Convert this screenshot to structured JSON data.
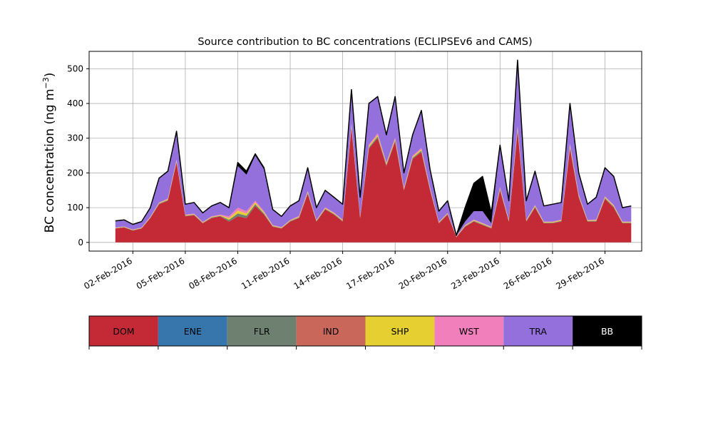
{
  "chart_data": {
    "type": "area",
    "stacked": true,
    "title": "Source contribution to BC concentrations (ECLIPSEv6 and CAMS)",
    "ylabel_main": "BC concentration (ng m",
    "ylabel_sup": "−3",
    "ylabel_close": ")",
    "xlabel": "",
    "ylim": [
      -25,
      550
    ],
    "y_ticks": [
      0,
      100,
      200,
      300,
      400,
      500
    ],
    "y_tick_labels": [
      "0",
      "100",
      "200",
      "300",
      "400",
      "500"
    ],
    "x_range_days": [
      -1.5,
      30.1
    ],
    "x_ticks_day": [
      1,
      4,
      7,
      10,
      13,
      16,
      19,
      22,
      25,
      28
    ],
    "x_tick_labels": [
      "02-Feb-2016",
      "05-Feb-2016",
      "08-Feb-2016",
      "11-Feb-2016",
      "14-Feb-2016",
      "17-Feb-2016",
      "20-Feb-2016",
      "23-Feb-2016",
      "26-Feb-2016",
      "29-Feb-2016"
    ],
    "grid": true,
    "series_colors": {
      "DOM": "#c32a36",
      "ENE": "#3776ad",
      "FLR": "#6e8070",
      "IND": "#c9675a",
      "SHP": "#e6cf30",
      "WST": "#f07fbc",
      "TRA": "#9370db",
      "BB": "#000000"
    },
    "time_days": [
      0,
      0.5,
      1,
      1.5,
      2,
      2.5,
      3,
      3.5,
      4,
      4.5,
      5,
      5.5,
      6,
      6.5,
      7,
      7.5,
      8,
      8.5,
      9,
      9.5,
      10,
      10.5,
      11,
      11.5,
      12,
      12.5,
      13,
      13.5,
      14,
      14.5,
      15,
      15.5,
      16,
      16.5,
      17,
      17.5,
      18,
      18.5,
      19,
      19.5,
      20,
      20.5,
      21,
      21.5,
      22,
      22.5,
      23,
      23.5,
      24,
      24.5,
      25,
      25.5,
      26,
      26.5,
      27,
      27.5,
      28,
      28.5,
      29,
      29.5
    ],
    "totals": [
      62,
      65,
      52,
      60,
      100,
      185,
      205,
      320,
      110,
      115,
      85,
      105,
      115,
      100,
      230,
      205,
      255,
      215,
      95,
      75,
      105,
      120,
      215,
      100,
      150,
      130,
      110,
      440,
      130,
      400,
      420,
      310,
      420,
      200,
      310,
      380,
      210,
      90,
      120,
      20,
      100,
      170,
      190,
      85,
      280,
      120,
      525,
      120,
      205,
      105,
      110,
      115,
      400,
      200,
      110,
      130,
      215,
      190,
      100,
      105
    ],
    "dom": [
      40,
      43,
      34,
      40,
      70,
      110,
      120,
      230,
      75,
      78,
      55,
      70,
      75,
      60,
      75,
      70,
      105,
      80,
      45,
      40,
      60,
      70,
      140,
      60,
      95,
      80,
      60,
      330,
      70,
      270,
      300,
      220,
      290,
      150,
      240,
      260,
      150,
      55,
      80,
      15,
      45,
      60,
      50,
      40,
      150,
      60,
      320,
      60,
      100,
      55,
      55,
      60,
      270,
      130,
      60,
      60,
      125,
      100,
      55,
      55
    ],
    "other": [
      3,
      3,
      3,
      3,
      4,
      5,
      6,
      8,
      5,
      5,
      4,
      5,
      5,
      15,
      25,
      20,
      15,
      10,
      5,
      4,
      5,
      6,
      8,
      5,
      6,
      6,
      6,
      12,
      6,
      12,
      14,
      10,
      12,
      8,
      10,
      12,
      8,
      4,
      5,
      2,
      5,
      6,
      6,
      5,
      10,
      6,
      15,
      6,
      8,
      5,
      5,
      6,
      14,
      8,
      5,
      6,
      8,
      8,
      5,
      5
    ],
    "bb": [
      0,
      0,
      0,
      0,
      0,
      0,
      0,
      0,
      0,
      0,
      0,
      0,
      0,
      0,
      10,
      10,
      5,
      5,
      0,
      0,
      0,
      0,
      0,
      0,
      0,
      0,
      0,
      0,
      0,
      0,
      0,
      0,
      0,
      0,
      0,
      0,
      0,
      0,
      0,
      0,
      40,
      80,
      100,
      30,
      0,
      0,
      0,
      0,
      0,
      0,
      0,
      0,
      0,
      0,
      0,
      0,
      0,
      0,
      0,
      0
    ]
  },
  "legend": {
    "items": [
      {
        "key": "DOM",
        "color": "#c32a36",
        "text_color": "#000000"
      },
      {
        "key": "ENE",
        "color": "#3776ad",
        "text_color": "#000000"
      },
      {
        "key": "FLR",
        "color": "#6e8070",
        "text_color": "#000000"
      },
      {
        "key": "IND",
        "color": "#c9675a",
        "text_color": "#000000"
      },
      {
        "key": "SHP",
        "color": "#e6cf30",
        "text_color": "#000000"
      },
      {
        "key": "WST",
        "color": "#f07fbc",
        "text_color": "#000000"
      },
      {
        "key": "TRA",
        "color": "#9370db",
        "text_color": "#000000"
      },
      {
        "key": "BB",
        "color": "#000000",
        "text_color": "#ffffff"
      }
    ]
  }
}
